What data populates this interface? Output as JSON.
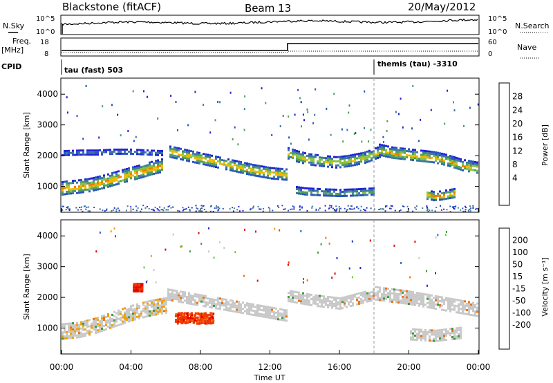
{
  "header": {
    "station": "Blackstone (fitACF)",
    "beam": "Beam 13",
    "date": "20/May/2012"
  },
  "strips": {
    "nsky_label": "N.Sky",
    "nsearch_label": "N.Search",
    "freq_label_1": "Freq.",
    "freq_label_2": "[MHz]",
    "nave_label": "Nave",
    "cpid_label": "CPID",
    "nsky_ticks": [
      "10^5",
      "10^0"
    ],
    "nsearch_ticks": [
      "10^5",
      "10^0"
    ],
    "freq_ticks": [
      "18",
      "8"
    ],
    "nave_ticks": [
      "60",
      "0"
    ],
    "cpid_mode_1": "tau (fast) 503",
    "cpid_mode_2": "themis (tau) -3310"
  },
  "colors": {
    "power_scale": [
      "#2323d6",
      "#2a52c4",
      "#3b7a9a",
      "#4fa05c",
      "#86c23c",
      "#f0b800",
      "#f07a00",
      "#e03000",
      "#d40000"
    ],
    "velocity_scale": [
      "#1c2ecc",
      "#2c5bd0",
      "#3c9a3c",
      "#6cc83c",
      "#c8c8c8",
      "#c8c8c8",
      "#f0a000",
      "#f07000",
      "#f03a00",
      "#e00000"
    ]
  },
  "chart_data": [
    {
      "type": "heatmap",
      "panel": "power",
      "ylabel": "Slant Range [km]",
      "colorbar_label": "Power [dB]",
      "colorbar_ticks": [
        "28",
        "24",
        "20",
        "16",
        "12",
        "8",
        "4"
      ],
      "yticks": [
        "4000",
        "3000",
        "2000",
        "1000"
      ],
      "xlim": [
        0,
        24
      ],
      "ylim": [
        180,
        4500
      ],
      "bands": [
        {
          "x": [
            0.0,
            0.3,
            0.8,
            1.5,
            2.5,
            3.5,
            4.5,
            5.2,
            5.8
          ],
          "y": [
            950,
            980,
            1000,
            1050,
            1180,
            1350,
            1500,
            1620,
            1700
          ],
          "width": 220,
          "peak_db": 26
        },
        {
          "x": [
            0.0,
            1.0,
            2.0,
            3.0,
            4.0,
            5.0,
            5.8
          ],
          "y": [
            2100,
            2120,
            2120,
            2150,
            2150,
            2120,
            2100
          ],
          "width": 80,
          "peak_db": 10
        },
        {
          "x": [
            6.2,
            7.0,
            7.8,
            8.6,
            9.4,
            10.2,
            11.0,
            12.0,
            13.0
          ],
          "y": [
            2150,
            2050,
            1950,
            1850,
            1750,
            1650,
            1550,
            1450,
            1400
          ],
          "width": 180,
          "peak_db": 24
        },
        {
          "x": [
            13.0,
            13.5,
            14.2,
            15.0,
            15.8,
            16.5,
            17.4,
            18.3
          ],
          "y": [
            2100,
            2000,
            1900,
            1850,
            1800,
            1850,
            1950,
            2150
          ],
          "width": 180,
          "peak_db": 22
        },
        {
          "x": [
            18.2,
            19.0,
            19.8,
            20.6,
            21.4,
            22.2,
            23.0,
            24.0
          ],
          "y": [
            2200,
            2100,
            2050,
            2000,
            1950,
            1850,
            1700,
            1600
          ],
          "width": 200,
          "peak_db": 23
        },
        {
          "x": [
            21.0,
            21.4,
            21.8,
            22.2,
            22.6
          ],
          "y": [
            750,
            700,
            720,
            760,
            800
          ],
          "width": 150,
          "peak_db": 27
        },
        {
          "x": [
            13.4,
            14.0,
            15.0,
            16.0,
            17.0,
            18.0
          ],
          "y": [
            900,
            850,
            820,
            800,
            820,
            850
          ],
          "width": 120,
          "peak_db": 16
        }
      ]
    },
    {
      "type": "heatmap",
      "panel": "velocity",
      "ylabel": "Slant Range [km]",
      "xlabel": "Time UT",
      "colorbar_label": "Velocity [m s⁻¹]",
      "colorbar_ticks": [
        "200",
        "100",
        "50",
        "15",
        "-15",
        "-50",
        "-100",
        "-200"
      ],
      "yticks": [
        "4000",
        "3000",
        "2000",
        "1000"
      ],
      "xticks": [
        "00:00",
        "04:00",
        "08:00",
        "12:00",
        "16:00",
        "20:00",
        "00:00"
      ],
      "xlim": [
        0,
        24
      ],
      "ylim": [
        180,
        4500
      ],
      "patches": [
        {
          "x": 4.1,
          "y": 2350,
          "width_h": 0.5,
          "height_km": 250,
          "velocity": -200
        },
        {
          "x": 6.5,
          "y": 1350,
          "width_h": 2.2,
          "height_km": 350,
          "velocity": -150
        }
      ],
      "bands": [
        {
          "x": [
            0.0,
            1.0,
            2.0,
            3.0,
            4.0,
            5.0,
            6.0
          ],
          "y": [
            900,
            950,
            1100,
            1300,
            1500,
            1650,
            1750
          ],
          "width": 260,
          "velocity": -10
        },
        {
          "x": [
            6.0,
            8.0,
            10.0,
            12.0,
            13.0
          ],
          "y": [
            2100,
            1900,
            1700,
            1500,
            1400
          ],
          "width": 200,
          "velocity": 5
        },
        {
          "x": [
            13.0,
            14.5,
            16.0,
            18.0
          ],
          "y": [
            2050,
            1900,
            1800,
            2100
          ],
          "width": 200,
          "velocity": 0
        },
        {
          "x": [
            18.0,
            20.0,
            22.0,
            24.0
          ],
          "y": [
            2150,
            2000,
            1800,
            1600
          ],
          "width": 220,
          "velocity": 5
        },
        {
          "x": [
            20.0,
            21.5,
            23.0
          ],
          "y": [
            800,
            750,
            850
          ],
          "width": 200,
          "velocity": 0
        }
      ]
    }
  ]
}
